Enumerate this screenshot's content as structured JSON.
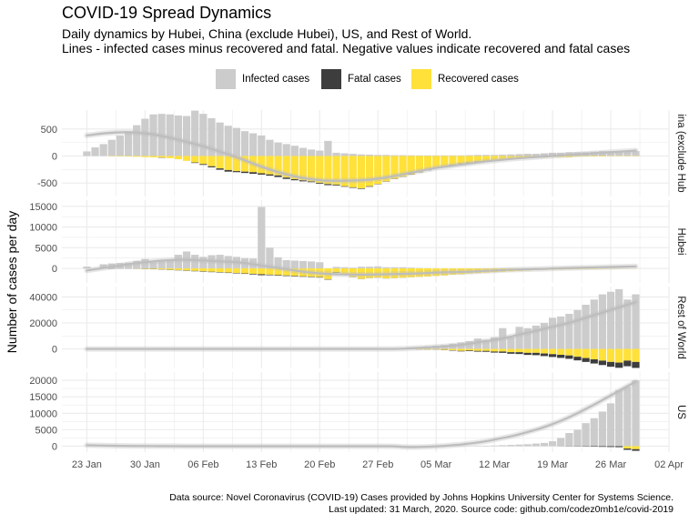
{
  "title": "COVID-19 Spread Dynamics",
  "subtitle_line1": "Daily dynamics by Hubei, China (exclude Hubei), US, and Rest of World.",
  "subtitle_line2": "Lines - infected cases minus recovered and fatal. Negative values indicate recovered and fatal cases",
  "caption_line1": "Data source: Novel Coronavirus (COVID-19) Cases provided by Johns Hopkins University Center for Systems Science.",
  "caption_line2": "Last updated: 31 March, 2020. Source code: github.com/codez0mb1e/covid-2019",
  "colors": {
    "infected": "#cccccc",
    "fatal": "#3d3d3d",
    "recovered": "#ffe13a",
    "trend": "#bdbdbd",
    "grid": "#ebebeb"
  },
  "legend": [
    {
      "label": "Infected cases",
      "color": "#cccccc"
    },
    {
      "label": "Fatal cases",
      "color": "#3d3d3d"
    },
    {
      "label": "Recovered cases",
      "color": "#ffe13a"
    }
  ],
  "chart_data": {
    "type": "bar",
    "stacked": true,
    "ylabel": "Number of cases per day",
    "x_tick_labels": [
      "23 Jan",
      "30 Jan",
      "06 Feb",
      "13 Feb",
      "20 Feb",
      "27 Feb",
      "05 Mar",
      "12 Mar",
      "19 Mar",
      "26 Mar",
      "02 Apr"
    ],
    "x_range": [
      "2020-01-20",
      "2020-04-02"
    ],
    "first_day": "2020-01-23",
    "panels": [
      {
        "name": "China (exclude Hubei)",
        "strip_label": "ina (exclude Hub",
        "ylim": [
          -750,
          850
        ],
        "yticks": [
          -500,
          0,
          500
        ],
        "infected": [
          85,
          160,
          220,
          300,
          380,
          460,
          570,
          690,
          770,
          780,
          770,
          750,
          740,
          840,
          780,
          700,
          620,
          560,
          520,
          460,
          420,
          380,
          300,
          250,
          220,
          190,
          150,
          120,
          100,
          280,
          60,
          50,
          40,
          30,
          25,
          20,
          20,
          15,
          15,
          12,
          10,
          10,
          10,
          10,
          10,
          10,
          15,
          20,
          20,
          20,
          25,
          30,
          35,
          40,
          40,
          50,
          60,
          60,
          70,
          70,
          70,
          80,
          90,
          90,
          90,
          90,
          90
        ],
        "recovered": [
          0,
          0,
          0,
          5,
          8,
          10,
          15,
          20,
          25,
          30,
          40,
          60,
          90,
          120,
          150,
          190,
          230,
          260,
          280,
          290,
          300,
          320,
          340,
          360,
          400,
          430,
          450,
          470,
          500,
          520,
          530,
          560,
          580,
          600,
          560,
          520,
          470,
          420,
          380,
          340,
          300,
          260,
          220,
          190,
          160,
          140,
          120,
          100,
          90,
          80,
          70,
          60,
          50,
          40,
          30,
          30,
          20,
          20,
          20,
          10,
          10,
          10,
          10,
          5,
          5,
          5,
          5
        ],
        "fatal": [
          0,
          0,
          0,
          0,
          0,
          0,
          0,
          0,
          0,
          5,
          0,
          0,
          0,
          10,
          15,
          20,
          25,
          30,
          20,
          25,
          30,
          25,
          25,
          30,
          25,
          20,
          20,
          15,
          15,
          20,
          15,
          10,
          10,
          10,
          10,
          5,
          5,
          5,
          5,
          5,
          5,
          5,
          5,
          5,
          5,
          5,
          5,
          5,
          5,
          0,
          0,
          0,
          0,
          0,
          0,
          0,
          0,
          0,
          0,
          0,
          0,
          0,
          0,
          0,
          0,
          0,
          0
        ],
        "trend": [
          380,
          400,
          420,
          430,
          440,
          440,
          430,
          420,
          400,
          370,
          340,
          300,
          260,
          220,
          180,
          130,
          80,
          30,
          -20,
          -80,
          -140,
          -200,
          -250,
          -300,
          -340,
          -380,
          -410,
          -430,
          -450,
          -460,
          -460,
          -460,
          -455,
          -450,
          -440,
          -420,
          -400,
          -370,
          -340,
          -310,
          -280,
          -250,
          -220,
          -200,
          -180,
          -160,
          -140,
          -120,
          -100,
          -85,
          -70,
          -55,
          -40,
          -30,
          -20,
          -10,
          0,
          10,
          20,
          30,
          40,
          50,
          60,
          70,
          80,
          90,
          100
        ]
      },
      {
        "name": "Hubei",
        "strip_label": "Hubei",
        "ylim": [
          -3500,
          16500
        ],
        "yticks": [
          0,
          5000,
          10000,
          15000
        ],
        "infected": [
          444,
          0,
          1000,
          1200,
          1300,
          1400,
          1800,
          2300,
          1500,
          1700,
          2200,
          3300,
          4100,
          3300,
          2800,
          3200,
          3300,
          3000,
          2800,
          2500,
          2400,
          14840,
          5000,
          2700,
          2000,
          1900,
          1800,
          1700,
          1500,
          0,
          380,
          300,
          200,
          420,
          420,
          500,
          300,
          300,
          300,
          200,
          120,
          70,
          40,
          30,
          20,
          10,
          10,
          10,
          0,
          0,
          0,
          0,
          0,
          0,
          0,
          0,
          0,
          0,
          0,
          0,
          0,
          0,
          0,
          0,
          0,
          0,
          0
        ],
        "recovered": [
          0,
          0,
          0,
          0,
          0,
          0,
          50,
          100,
          150,
          200,
          300,
          400,
          500,
          600,
          700,
          800,
          900,
          1000,
          1100,
          1200,
          1300,
          1400,
          1500,
          1600,
          1700,
          1800,
          1900,
          2000,
          2100,
          2600,
          1000,
          1500,
          2000,
          2500,
          2300,
          2200,
          2400,
          2300,
          2200,
          2100,
          2000,
          1900,
          1800,
          1700,
          1500,
          1400,
          1200,
          1100,
          1000,
          900,
          800,
          700,
          600,
          500,
          400,
          350,
          300,
          250,
          200,
          150,
          120,
          100,
          80,
          60,
          40,
          30,
          20
        ],
        "fatal": [
          0,
          0,
          0,
          50,
          30,
          30,
          40,
          50,
          60,
          60,
          70,
          70,
          80,
          90,
          100,
          100,
          100,
          100,
          110,
          120,
          150,
          240,
          140,
          140,
          140,
          130,
          120,
          110,
          110,
          100,
          90,
          60,
          70,
          40,
          30,
          30,
          30,
          30,
          30,
          20,
          20,
          20,
          10,
          10,
          10,
          10,
          10,
          10,
          5,
          5,
          5,
          5,
          5,
          5,
          5,
          5,
          5,
          5,
          5,
          5,
          5,
          5,
          0,
          0,
          0,
          0,
          0
        ],
        "trend": [
          -500,
          -200,
          100,
          400,
          700,
          1000,
          1300,
          1500,
          1700,
          1900,
          2000,
          2100,
          2100,
          2000,
          1900,
          1800,
          1700,
          1600,
          1500,
          1300,
          1000,
          700,
          400,
          100,
          -200,
          -500,
          -800,
          -1000,
          -1200,
          -1300,
          -1400,
          -1450,
          -1500,
          -1500,
          -1500,
          -1450,
          -1400,
          -1350,
          -1300,
          -1250,
          -1200,
          -1100,
          -1000,
          -950,
          -900,
          -850,
          -800,
          -700,
          -600,
          -500,
          -400,
          -300,
          -250,
          -200,
          -150,
          -100,
          0,
          50,
          100,
          150,
          200,
          250,
          300,
          350,
          400,
          450,
          500
        ]
      },
      {
        "name": "Rest of World",
        "strip_label": "Rest of World",
        "ylim": [
          -15000,
          48000
        ],
        "yticks": [
          0,
          20000,
          40000
        ],
        "infected": [
          0,
          0,
          0,
          0,
          0,
          0,
          0,
          0,
          0,
          0,
          0,
          0,
          0,
          0,
          0,
          0,
          0,
          0,
          0,
          0,
          0,
          0,
          0,
          0,
          0,
          0,
          0,
          0,
          0,
          0,
          0,
          0,
          0,
          0,
          0,
          0,
          0,
          0,
          0,
          1200,
          1500,
          2000,
          2500,
          3000,
          4000,
          5000,
          6000,
          8000,
          7000,
          9000,
          16000,
          9000,
          17000,
          16000,
          18000,
          20000,
          24000,
          25000,
          27000,
          30000,
          34000,
          38000,
          42000,
          44000,
          46000,
          38000,
          42000
        ],
        "recovered": [
          0,
          0,
          0,
          0,
          0,
          0,
          0,
          0,
          0,
          0,
          0,
          0,
          0,
          0,
          0,
          0,
          0,
          0,
          0,
          0,
          0,
          0,
          0,
          0,
          0,
          0,
          0,
          0,
          0,
          0,
          0,
          0,
          0,
          0,
          0,
          0,
          0,
          0,
          0,
          200,
          300,
          500,
          500,
          700,
          1000,
          1500,
          1200,
          1500,
          1500,
          2000,
          2000,
          2500,
          2500,
          3000,
          3000,
          3500,
          4000,
          4500,
          5000,
          6000,
          7000,
          8000,
          9000,
          10000,
          10500,
          9000,
          10000
        ],
        "fatal": [
          0,
          0,
          0,
          0,
          0,
          0,
          0,
          0,
          0,
          0,
          0,
          0,
          0,
          0,
          0,
          0,
          0,
          0,
          0,
          0,
          0,
          0,
          0,
          0,
          0,
          0,
          0,
          0,
          0,
          0,
          0,
          0,
          0,
          0,
          0,
          0,
          0,
          0,
          0,
          50,
          80,
          100,
          150,
          200,
          300,
          400,
          500,
          600,
          700,
          800,
          1000,
          1200,
          1400,
          1600,
          1800,
          2000,
          2200,
          2400,
          2600,
          2800,
          3000,
          3200,
          3400,
          3700,
          4000,
          4300,
          4600
        ],
        "trend": [
          0,
          0,
          0,
          0,
          0,
          0,
          0,
          0,
          0,
          0,
          0,
          0,
          0,
          0,
          0,
          0,
          0,
          0,
          0,
          0,
          0,
          0,
          0,
          0,
          0,
          0,
          0,
          0,
          0,
          0,
          0,
          0,
          0,
          0,
          0,
          0,
          0,
          0,
          200,
          500,
          800,
          1200,
          1600,
          2000,
          2500,
          3000,
          4000,
          5000,
          6000,
          7000,
          8000,
          9500,
          11000,
          12500,
          14000,
          15500,
          17000,
          18500,
          20000,
          22000,
          24000,
          26000,
          28000,
          30000,
          32000,
          34000,
          36000
        ]
      },
      {
        "name": "US",
        "strip_label": "US",
        "ylim": [
          -1800,
          22500
        ],
        "yticks": [
          0,
          5000,
          10000,
          15000,
          20000
        ],
        "infected": [
          0,
          0,
          0,
          0,
          0,
          0,
          0,
          0,
          0,
          0,
          0,
          0,
          0,
          0,
          0,
          0,
          0,
          0,
          0,
          0,
          0,
          0,
          0,
          0,
          0,
          0,
          0,
          0,
          0,
          0,
          0,
          0,
          0,
          0,
          0,
          0,
          0,
          0,
          0,
          0,
          0,
          0,
          0,
          0,
          0,
          0,
          0,
          100,
          150,
          200,
          300,
          400,
          500,
          600,
          800,
          1000,
          1500,
          2500,
          4000,
          5000,
          7000,
          8500,
          10500,
          13000,
          17000,
          18000,
          20000
        ],
        "recovered": [
          0,
          0,
          0,
          0,
          0,
          0,
          0,
          0,
          0,
          0,
          0,
          0,
          0,
          0,
          0,
          0,
          0,
          0,
          0,
          0,
          0,
          0,
          0,
          0,
          0,
          0,
          0,
          0,
          0,
          0,
          0,
          0,
          0,
          0,
          0,
          0,
          0,
          0,
          0,
          0,
          0,
          0,
          0,
          0,
          0,
          0,
          0,
          0,
          0,
          0,
          0,
          0,
          0,
          0,
          0,
          0,
          0,
          0,
          0,
          0,
          0,
          0,
          0,
          0,
          0,
          700,
          900
        ],
        "fatal": [
          0,
          0,
          0,
          0,
          0,
          0,
          0,
          0,
          0,
          0,
          0,
          0,
          0,
          0,
          0,
          0,
          0,
          0,
          0,
          0,
          0,
          0,
          0,
          0,
          0,
          0,
          0,
          0,
          0,
          0,
          0,
          0,
          0,
          0,
          0,
          0,
          0,
          0,
          0,
          0,
          0,
          0,
          0,
          0,
          0,
          0,
          0,
          0,
          0,
          0,
          0,
          0,
          0,
          0,
          0,
          0,
          0,
          20,
          50,
          70,
          100,
          150,
          200,
          250,
          300,
          400,
          500
        ],
        "trend": [
          300,
          250,
          200,
          150,
          100,
          80,
          60,
          50,
          40,
          30,
          20,
          10,
          0,
          0,
          0,
          0,
          0,
          0,
          0,
          0,
          0,
          0,
          0,
          0,
          0,
          0,
          0,
          0,
          0,
          0,
          0,
          0,
          0,
          0,
          0,
          0,
          0,
          0,
          -200,
          -300,
          -250,
          -150,
          -50,
          100,
          300,
          500,
          800,
          1100,
          1500,
          2000,
          2500,
          3000,
          3600,
          4300,
          5000,
          5800,
          6700,
          7700,
          8800,
          10000,
          11300,
          12600,
          14000,
          15400,
          16800,
          18200,
          19600
        ]
      }
    ]
  }
}
